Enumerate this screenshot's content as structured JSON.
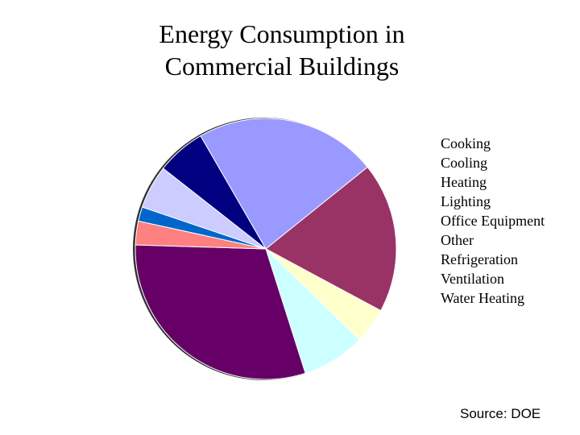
{
  "chart_data": {
    "type": "pie",
    "title": "Energy Consumption in Commercial Buildings",
    "title_lines": [
      "Energy Consumption in",
      "Commercial Buildings"
    ],
    "legend_position": "right",
    "slices": [
      {
        "label": "Lighting",
        "value": 23,
        "color": "#9999FF"
      },
      {
        "label": "Heating",
        "value": 19,
        "color": "#993366"
      },
      {
        "label": "Cooking",
        "value": 4.5,
        "color": "#FFFFCC"
      },
      {
        "label": "Cooling",
        "value": 8,
        "color": "#CCFFFF"
      },
      {
        "label": "Other",
        "value": 31,
        "color": "#660066"
      },
      {
        "label": "Refrigeration",
        "value": 3,
        "color": "#FF8080"
      },
      {
        "label": "Ventilation",
        "value": 1.8,
        "color": "#0066CC"
      },
      {
        "label": "Office Equipment",
        "value": 5.5,
        "color": "#CCCCFF"
      },
      {
        "label": "Water Heating",
        "value": 6.2,
        "color": "#000080"
      }
    ],
    "legend": [
      "Cooking",
      "Cooling",
      "Heating",
      "Lighting",
      "Office Equipment",
      "Other",
      "Refrigeration",
      "Ventilation",
      "Water Heating"
    ],
    "source": "Source: DOE"
  }
}
